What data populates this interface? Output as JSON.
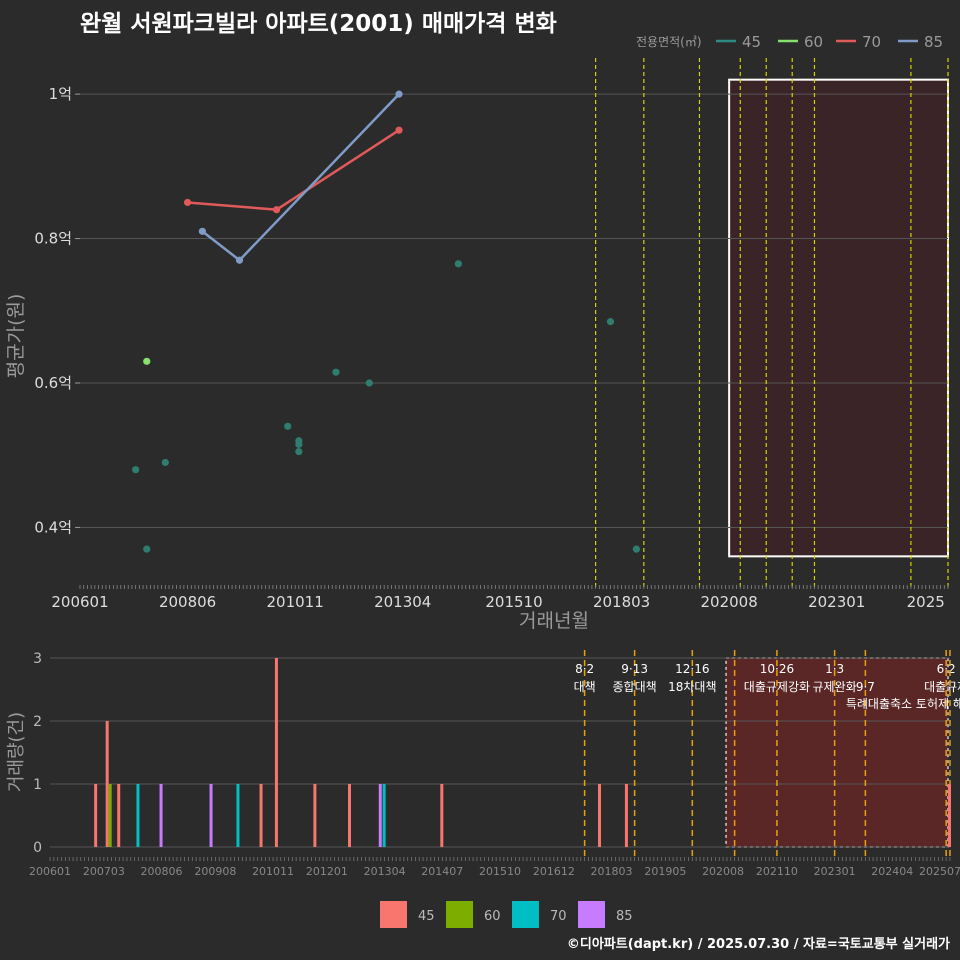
{
  "title": "완월 서원파크빌라 아파트(2001) 매매가격 변화",
  "footer": "©디아파트(dapt.kr) / 2025.07.30 / 자료=국토교통부 실거래가",
  "colors": {
    "bg": "#2b2b2b",
    "grid": "#555555",
    "text": "#dddddd",
    "axis_title": "#9a9a9a",
    "policy_line": "#d4d400",
    "policy_line_bottom": "#e8a010",
    "highlight_fill": "#3a2428",
    "highlight_fill_bottom": "#5a2626",
    "highlight_border": "#ffffff",
    "scatter": "#2e7d6e"
  },
  "chart_data": [
    {
      "type": "line",
      "xlabel": "거래년월",
      "ylabel": "평균가(원)",
      "x_ticks": [
        "200601",
        "200806",
        "201011",
        "201304",
        "201510",
        "201803",
        "202008",
        "202301",
        "2025"
      ],
      "y_ticks": [
        {
          "value": 0.4,
          "label": "0.4억"
        },
        {
          "value": 0.6,
          "label": "0.6억"
        },
        {
          "value": 0.8,
          "label": "0.8억"
        },
        {
          "value": 1.0,
          "label": "1억"
        }
      ],
      "xlim": [
        200601,
        202507
      ],
      "ylim": [
        0.33,
        1.05
      ],
      "legend_title": "전용면적(㎡)",
      "legend": [
        {
          "label": "45",
          "color": "#2e8b84"
        },
        {
          "label": "60",
          "color": "#86e06e"
        },
        {
          "label": "70",
          "color": "#e05a5a"
        },
        {
          "label": "85",
          "color": "#7f9cc8"
        }
      ],
      "series": [
        {
          "name": "45",
          "color": "#2e7d6e",
          "mode": "points",
          "points": [
            {
              "x": 200704,
              "y": 0.48
            },
            {
              "x": 200707,
              "y": 0.37
            },
            {
              "x": 200712,
              "y": 0.49
            },
            {
              "x": 201009,
              "y": 0.54
            },
            {
              "x": 201012,
              "y": 0.505
            },
            {
              "x": 201012,
              "y": 0.515
            },
            {
              "x": 201012,
              "y": 0.52
            },
            {
              "x": 201110,
              "y": 0.615
            },
            {
              "x": 201207,
              "y": 0.6
            },
            {
              "x": 201407,
              "y": 0.765
            },
            {
              "x": 201712,
              "y": 0.685
            },
            {
              "x": 201807,
              "y": 0.37
            }
          ]
        },
        {
          "name": "60",
          "color": "#86e06e",
          "mode": "points",
          "points": [
            {
              "x": 200707,
              "y": 0.63
            }
          ]
        },
        {
          "name": "70",
          "color": "#e05a5a",
          "mode": "line",
          "points": [
            {
              "x": 200806,
              "y": 0.85
            },
            {
              "x": 201006,
              "y": 0.84
            },
            {
              "x": 201303,
              "y": 0.95
            }
          ]
        },
        {
          "name": "85",
          "color": "#7f9cc8",
          "mode": "line",
          "points": [
            {
              "x": 200810,
              "y": 0.81
            },
            {
              "x": 200908,
              "y": 0.77
            },
            {
              "x": 201303,
              "y": 1.0
            }
          ]
        }
      ],
      "policy_lines": [
        201708,
        201809,
        201912,
        202011,
        202106,
        202201,
        202207,
        202409,
        202507
      ],
      "highlight_range": {
        "x": [
          202008,
          202507
        ],
        "y": [
          0.36,
          1.02
        ]
      }
    },
    {
      "type": "bar",
      "xlabel": "",
      "ylabel": "거래량(건)",
      "x_ticks": [
        "200601",
        "200703",
        "200806",
        "200908",
        "201011",
        "201201",
        "201304",
        "201407",
        "201510",
        "201612",
        "201803",
        "201905",
        "202008",
        "202110",
        "202301",
        "202404",
        "202507"
      ],
      "y_ticks": [
        0,
        1,
        2,
        3
      ],
      "ylim": [
        0,
        3
      ],
      "legend": [
        {
          "label": "45",
          "color": "#f8766d"
        },
        {
          "label": "60",
          "color": "#7cae00"
        },
        {
          "label": "70",
          "color": "#00bfc4"
        },
        {
          "label": "85",
          "color": "#c77cff"
        }
      ],
      "bars": [
        {
          "x": 200701,
          "value": 1,
          "series": "45"
        },
        {
          "x": 200704,
          "value": 2,
          "series": "45"
        },
        {
          "x": 200704,
          "value": 1,
          "series": "60"
        },
        {
          "x": 200707,
          "value": 1,
          "series": "45"
        },
        {
          "x": 200712,
          "value": 1,
          "series": "70"
        },
        {
          "x": 200806,
          "value": 1,
          "series": "85"
        },
        {
          "x": 200907,
          "value": 1,
          "series": "85"
        },
        {
          "x": 201002,
          "value": 1,
          "series": "70"
        },
        {
          "x": 201008,
          "value": 1,
          "series": "45"
        },
        {
          "x": 201012,
          "value": 3,
          "series": "45"
        },
        {
          "x": 201110,
          "value": 1,
          "series": "45"
        },
        {
          "x": 201207,
          "value": 1,
          "series": "45"
        },
        {
          "x": 201303,
          "value": 1,
          "series": "85"
        },
        {
          "x": 201304,
          "value": 1,
          "series": "70"
        },
        {
          "x": 201407,
          "value": 1,
          "series": "45"
        },
        {
          "x": 201712,
          "value": 1,
          "series": "45"
        },
        {
          "x": 201807,
          "value": 1,
          "series": "45"
        },
        {
          "x": 202507,
          "value": 1,
          "series": "45"
        }
      ],
      "policies": [
        {
          "x": 201708,
          "date": "8·2",
          "label": "대책",
          "row": 1
        },
        {
          "x": 201809,
          "date": "9·13",
          "label": "종합대책",
          "row": 1
        },
        {
          "x": 201912,
          "date": "12·16",
          "label": "18차대책",
          "row": 1
        },
        {
          "x": 202011,
          "date": "",
          "label": "",
          "row": 0
        },
        {
          "x": 202110,
          "date": "10·26",
          "label": "대출규제강화",
          "row": 1
        },
        {
          "x": 202301,
          "date": "1·3",
          "label": "규제완화",
          "row": 1
        },
        {
          "x": 202309,
          "date": "9·7",
          "label": "특례대출축소 토허제 해제",
          "row": 2
        },
        {
          "x": 202506,
          "date": "6·2",
          "label": "대출규제",
          "row": 1
        },
        {
          "x": 202507,
          "date": "",
          "label": "",
          "row": 0
        }
      ],
      "highlight_range": [
        202008,
        202507
      ]
    }
  ]
}
